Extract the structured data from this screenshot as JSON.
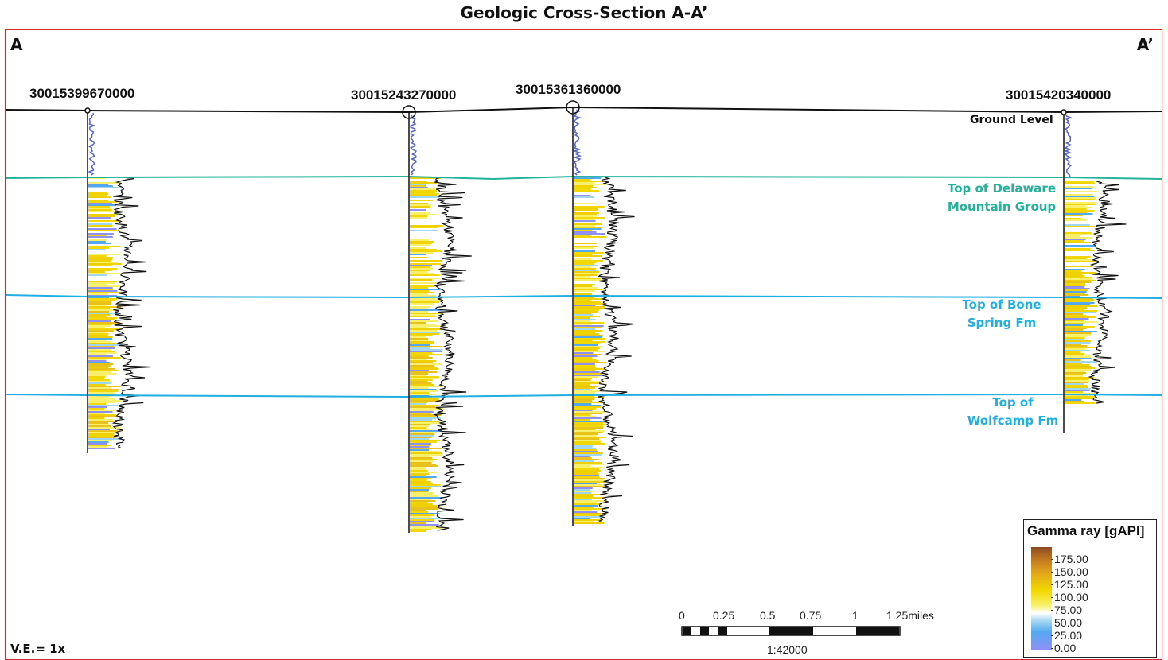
{
  "title": "Geologic Cross-Section A-A’",
  "section": {
    "start_label": "A",
    "end_label": "A’",
    "vertical_exaggeration": "V.E.= 1x"
  },
  "wells": [
    {
      "id": "30015399670000"
    },
    {
      "id": "30015243270000"
    },
    {
      "id": "30015361360000"
    },
    {
      "id": "30015420340000"
    }
  ],
  "surfaces": {
    "ground": {
      "label": "Ground Level",
      "color": "#111111"
    },
    "delaware": {
      "label_line1": "Top of Delaware",
      "label_line2": "Mountain Group",
      "color": "#22b39a"
    },
    "bone_spring": {
      "label_line1": "Top of Bone",
      "label_line2": "Spring Fm",
      "color": "#22aee0"
    },
    "wolfcamp": {
      "label_line1": "Top of",
      "label_line2": "Wolfcamp Fm",
      "color": "#22aee0"
    }
  },
  "legend": {
    "title": "Gamma ray [gAPI]",
    "ticks": [
      "175.00",
      "150.00",
      "125.00",
      "100.00",
      "75.00",
      "50.00",
      "25.00",
      "0.00"
    ]
  },
  "scale_bar": {
    "ticks": [
      "0",
      "0.25",
      "0.5",
      "0.75",
      "1",
      "1.25miles"
    ],
    "ratio": "1:42000"
  }
}
